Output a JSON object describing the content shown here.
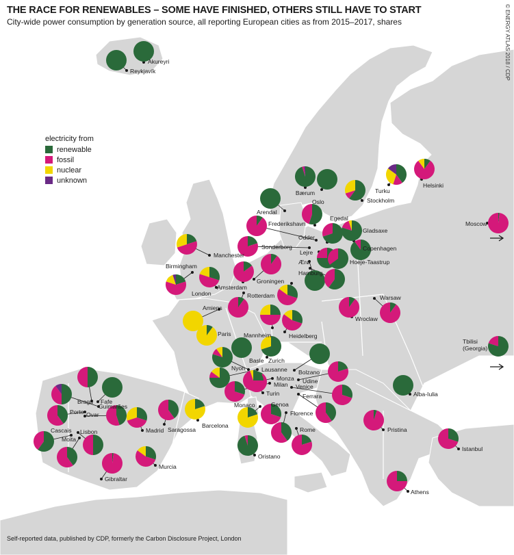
{
  "title": "THE RACE FOR RENEWABLES – SOME HAVE FINISHED, OTHERS STILL HAVE TO START",
  "subtitle": "City-wide power consumption by generation source, all reporting European cities as from 2015–2017, shares",
  "credit": "© ENERGY ATLAS 2018 / CDP",
  "source_note": "Self-reported data, published by CDP, formerly the Carbon Disclosure Project, London",
  "legend": {
    "title": "electricity from",
    "items": [
      {
        "key": "renewable",
        "label": "renewable",
        "color": "#2a6a3a"
      },
      {
        "key": "fossil",
        "label": "fossil",
        "color": "#d4197a"
      },
      {
        "key": "nuclear",
        "label": "nuclear",
        "color": "#f2d600"
      },
      {
        "key": "unknown",
        "label": "unknown",
        "color": "#6a2a86"
      }
    ]
  },
  "colors": {
    "sea": "#ffffff",
    "land": "#d6d6d6",
    "border": "#ffffff",
    "leader": "#1a1a1a"
  },
  "cities": [
    {
      "name": "Reykjavík",
      "shares": {
        "renewable": 100
      }
    },
    {
      "name": "Akureyri",
      "shares": {
        "renewable": 100
      }
    },
    {
      "name": "Bærum",
      "shares": {
        "renewable": 95,
        "fossil": 3,
        "unknown": 2
      }
    },
    {
      "name": "Oslo",
      "shares": {
        "renewable": 100
      }
    },
    {
      "name": "Stockholm",
      "shares": {
        "renewable": 60,
        "fossil": 10,
        "nuclear": 30
      }
    },
    {
      "name": "Turku",
      "shares": {
        "renewable": 40,
        "fossil": 15,
        "nuclear": 30,
        "unknown": 15
      }
    },
    {
      "name": "Helsinki",
      "shares": {
        "renewable": 10,
        "fossil": 80,
        "nuclear": 10
      }
    },
    {
      "name": "Arendal",
      "shares": {
        "renewable": 100
      }
    },
    {
      "name": "Frederikshavn",
      "shares": {
        "renewable": 55,
        "fossil": 45
      }
    },
    {
      "name": "Egedal",
      "shares": {
        "renewable": 70,
        "fossil": 30
      }
    },
    {
      "name": "Gladsaxe",
      "shares": {
        "renewable": 80,
        "fossil": 15,
        "nuclear": 5
      }
    },
    {
      "name": "Odder",
      "shares": {
        "renewable": 10,
        "fossil": 90
      }
    },
    {
      "name": "Sonderborg",
      "shares": {
        "renewable": 20,
        "fossil": 80
      }
    },
    {
      "name": "Copenhagen",
      "shares": {
        "renewable": 90,
        "fossil": 10
      }
    },
    {
      "name": "Lejre",
      "shares": {
        "renewable": 75,
        "fossil": 25
      }
    },
    {
      "name": "Hoeje-Taastrup",
      "shares": {
        "renewable": 65,
        "fossil": 35
      }
    },
    {
      "name": "Ærø",
      "shares": {
        "renewable": 100
      }
    },
    {
      "name": "Hamburg",
      "shares": {
        "renewable": 60,
        "fossil": 40
      }
    },
    {
      "name": "Manchester",
      "shares": {
        "renewable": 20,
        "fossil": 50,
        "nuclear": 30
      }
    },
    {
      "name": "Birmingham",
      "shares": {
        "renewable": 20,
        "fossil": 60,
        "nuclear": 15,
        "unknown": 5
      }
    },
    {
      "name": "London",
      "shares": {
        "renewable": 30,
        "fossil": 50,
        "nuclear": 20
      }
    },
    {
      "name": "Amsterdam",
      "shares": {
        "renewable": 15,
        "fossil": 85
      }
    },
    {
      "name": "Groningen",
      "shares": {
        "renewable": 10,
        "fossil": 90
      }
    },
    {
      "name": "Rotterdam",
      "shares": {
        "renewable": 10,
        "fossil": 90
      }
    },
    {
      "name": "Hanover",
      "shares": {
        "renewable": 30,
        "fossil": 55,
        "nuclear": 15
      }
    },
    {
      "name": "Warsaw",
      "shares": {
        "renewable": 10,
        "fossil": 90
      }
    },
    {
      "name": "Wroclaw",
      "shares": {
        "renewable": 10,
        "fossil": 90
      }
    },
    {
      "name": "Moscow",
      "shares": {
        "renewable": 2,
        "fossil": 98
      }
    },
    {
      "name": "Amiens",
      "shares": {
        "nuclear": 100
      }
    },
    {
      "name": "Paris",
      "shares": {
        "renewable": 10,
        "nuclear": 90
      }
    },
    {
      "name": "Mannheim",
      "shares": {
        "renewable": 25,
        "fossil": 50,
        "nuclear": 25
      }
    },
    {
      "name": "Heidelberg",
      "shares": {
        "renewable": 30,
        "fossil": 55,
        "nuclear": 15
      }
    },
    {
      "name": "Basle",
      "shares": {
        "renewable": 100
      }
    },
    {
      "name": "Zurich",
      "shares": {
        "renewable": 70,
        "nuclear": 30
      }
    },
    {
      "name": "Nyon",
      "shares": {
        "renewable": 80,
        "fossil": 10,
        "nuclear": 10
      }
    },
    {
      "name": "Lausanne",
      "shares": {
        "renewable": 75,
        "fossil": 10,
        "nuclear": 15
      }
    },
    {
      "name": "Bolzano",
      "shares": {
        "renewable": 100
      }
    },
    {
      "name": "Monza",
      "shares": {
        "renewable": 10,
        "fossil": 90
      }
    },
    {
      "name": "Milan",
      "shares": {
        "renewable": 30,
        "fossil": 70
      }
    },
    {
      "name": "Udine",
      "shares": {
        "renewable": 20,
        "fossil": 80
      }
    },
    {
      "name": "Venice",
      "shares": {
        "renewable": 30,
        "fossil": 70
      }
    },
    {
      "name": "Turin",
      "shares": {
        "renewable": 25,
        "fossil": 70,
        "nuclear": 5
      }
    },
    {
      "name": "Ferrara",
      "shares": {
        "renewable": 40,
        "fossil": 60
      }
    },
    {
      "name": "Tbilisi (Georgia)",
      "shares": {
        "renewable": 80,
        "fossil": 20
      }
    },
    {
      "name": "Alba-Iulia",
      "shares": {
        "renewable": 100
      }
    },
    {
      "name": "Braga",
      "shares": {
        "renewable": 50,
        "fossil": 50
      }
    },
    {
      "name": "Fafe",
      "shares": {
        "renewable": 100
      }
    },
    {
      "name": "Guimarães",
      "shares": {
        "renewable": 50,
        "fossil": 40,
        "unknown": 10
      }
    },
    {
      "name": "Porto",
      "shares": {
        "renewable": 40,
        "fossil": 60
      }
    },
    {
      "name": "Ovar",
      "shares": {
        "renewable": 45,
        "fossil": 55
      }
    },
    {
      "name": "Cascais",
      "shares": {
        "renewable": 60,
        "fossil": 40
      }
    },
    {
      "name": "Moita",
      "shares": {
        "renewable": 40,
        "fossil": 60
      }
    },
    {
      "name": "Lisbon",
      "shares": {
        "renewable": 50,
        "fossil": 50
      }
    },
    {
      "name": "Madrid",
      "shares": {
        "renewable": 30,
        "fossil": 40,
        "nuclear": 30
      }
    },
    {
      "name": "Saragossa",
      "shares": {
        "renewable": 40,
        "fossil": 60
      }
    },
    {
      "name": "Barcelona",
      "shares": {
        "renewable": 20,
        "nuclear": 80
      }
    },
    {
      "name": "Monaco",
      "shares": {
        "renewable": 20,
        "nuclear": 80
      }
    },
    {
      "name": "Genoa",
      "shares": {
        "renewable": 30,
        "fossil": 70
      }
    },
    {
      "name": "Florence",
      "shares": {
        "renewable": 40,
        "fossil": 60
      }
    },
    {
      "name": "Rome",
      "shares": {
        "renewable": 20,
        "fossil": 80
      }
    },
    {
      "name": "Oristano",
      "shares": {
        "renewable": 95,
        "fossil": 5
      }
    },
    {
      "name": "Murcia",
      "shares": {
        "renewable": 30,
        "fossil": 55,
        "nuclear": 15
      }
    },
    {
      "name": "Gibraltar",
      "shares": {
        "renewable": 2,
        "fossil": 98
      }
    },
    {
      "name": "Pristina",
      "shares": {
        "renewable": 5,
        "fossil": 95
      }
    },
    {
      "name": "Istanbul",
      "shares": {
        "renewable": 30,
        "fossil": 70
      }
    },
    {
      "name": "Athens",
      "shares": {
        "renewable": 25,
        "fossil": 75
      }
    }
  ]
}
